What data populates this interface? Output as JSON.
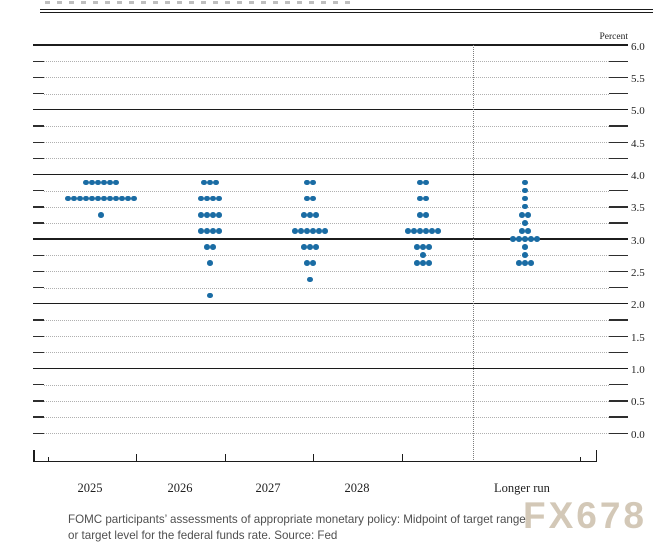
{
  "page": {
    "caption_line1": "FOMC participants’ assessments of appropriate monetary policy: Midpoint of target range",
    "caption_line2": "or target level for the federal funds rate. Source: Fed",
    "watermark": "FX678"
  },
  "chart_data": {
    "type": "scatter",
    "subtype": "fomc-dot-plot",
    "unit_label": "Percent",
    "x_categories": [
      "2025",
      "2026",
      "2027",
      "2028",
      "Longer run"
    ],
    "y_axis": {
      "min": 0.0,
      "max": 6.0,
      "tick_step": 0.25,
      "label_step": 0.5,
      "labels": [
        "6.0",
        "5.5",
        "5.0",
        "4.5",
        "4.0",
        "3.5",
        "3.0",
        "2.5",
        "2.0",
        "1.5",
        "1.0",
        "0.5",
        "0.0"
      ],
      "solid_lines": [
        6.0,
        5.0,
        4.0,
        3.0,
        2.0,
        1.0
      ]
    },
    "columns": [
      {
        "label": "2025",
        "dots": [
          {
            "rate": 3.875,
            "count": 6
          },
          {
            "rate": 3.625,
            "count": 12
          },
          {
            "rate": 3.375,
            "count": 1
          }
        ]
      },
      {
        "label": "2026",
        "dots": [
          {
            "rate": 3.875,
            "count": 3
          },
          {
            "rate": 3.625,
            "count": 4
          },
          {
            "rate": 3.375,
            "count": 4
          },
          {
            "rate": 3.125,
            "count": 4
          },
          {
            "rate": 2.875,
            "count": 2
          },
          {
            "rate": 2.625,
            "count": 1
          },
          {
            "rate": 2.125,
            "count": 1
          }
        ]
      },
      {
        "label": "2027",
        "dots": [
          {
            "rate": 3.875,
            "count": 2
          },
          {
            "rate": 3.625,
            "count": 2
          },
          {
            "rate": 3.375,
            "count": 3
          },
          {
            "rate": 3.125,
            "count": 6
          },
          {
            "rate": 2.875,
            "count": 3
          },
          {
            "rate": 2.625,
            "count": 2
          },
          {
            "rate": 2.375,
            "count": 1
          }
        ]
      },
      {
        "label": "2028",
        "dots": [
          {
            "rate": 3.875,
            "count": 2
          },
          {
            "rate": 3.625,
            "count": 2
          },
          {
            "rate": 3.375,
            "count": 2
          },
          {
            "rate": 3.125,
            "count": 6
          },
          {
            "rate": 2.875,
            "count": 3
          },
          {
            "rate": 2.75,
            "count": 1
          },
          {
            "rate": 2.625,
            "count": 3
          }
        ]
      },
      {
        "label": "Longer run",
        "dots": [
          {
            "rate": 3.875,
            "count": 1
          },
          {
            "rate": 3.75,
            "count": 1
          },
          {
            "rate": 3.625,
            "count": 1
          },
          {
            "rate": 3.5,
            "count": 1
          },
          {
            "rate": 3.375,
            "count": 2
          },
          {
            "rate": 3.25,
            "count": 1
          },
          {
            "rate": 3.125,
            "count": 2
          },
          {
            "rate": 3.0,
            "count": 5
          },
          {
            "rate": 2.875,
            "count": 1
          },
          {
            "rate": 2.75,
            "count": 1
          },
          {
            "rate": 2.625,
            "count": 3
          }
        ]
      }
    ],
    "colors": {
      "dot": "#1a6ca4",
      "major_line": "#1c1c1c",
      "minor_line": "#b0b0b0",
      "separator": "#7d7d7d"
    }
  }
}
